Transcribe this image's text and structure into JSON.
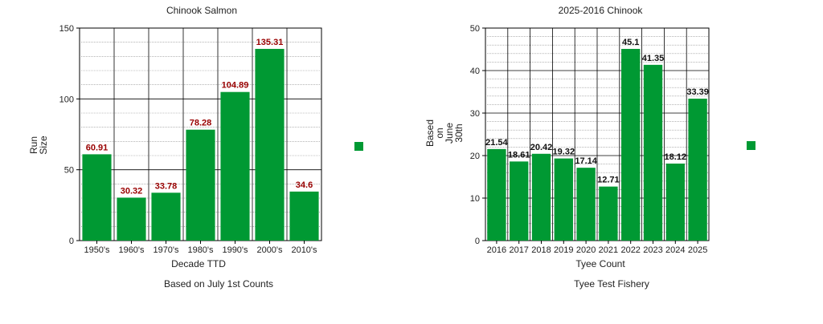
{
  "chart_data": [
    {
      "type": "bar",
      "title": "Chinook Salmon",
      "xlabel": "Decade TTD",
      "ylabel_lines": [
        "Run",
        "Size"
      ],
      "note": "Based on July 1st Counts",
      "categories": [
        "1950's",
        "1960's",
        "1970's",
        "1980's",
        "1990's",
        "2000's",
        "2010's"
      ],
      "values": [
        60.91,
        30.32,
        33.78,
        78.28,
        104.89,
        135.31,
        34.6
      ],
      "value_labels": [
        "60.91",
        "30.32",
        "33.78",
        "78.28",
        "104.89",
        "135.31",
        "34.6"
      ],
      "ylim": [
        0,
        150
      ],
      "yticks": [
        0,
        50,
        100,
        150
      ],
      "ytick_labels": [
        "0",
        "50",
        "100",
        "150"
      ],
      "grid": true,
      "legend": "right",
      "bar_color": "#009933",
      "label_color": "#990000"
    },
    {
      "type": "bar",
      "title": "2025-2016 Chinook",
      "xlabel": "Tyee Count",
      "ylabel_lines": [
        "Based",
        "on",
        "June",
        "30th"
      ],
      "note": "Tyee Test Fishery",
      "categories": [
        "2016",
        "2017",
        "2018",
        "2019",
        "2020",
        "2021",
        "2022",
        "2023",
        "2024",
        "2025"
      ],
      "values": [
        21.54,
        18.61,
        20.42,
        19.32,
        17.14,
        12.71,
        45.1,
        41.35,
        18.12,
        33.39
      ],
      "value_labels": [
        "21.54",
        "18.61",
        "20.42",
        "19.32",
        "17.14",
        "12.71",
        "45.1",
        "41.35",
        "18.12",
        "33.39"
      ],
      "ylim": [
        0,
        50
      ],
      "yticks": [
        0,
        10,
        20,
        30,
        40,
        50
      ],
      "ytick_labels": [
        "0",
        "10",
        "20",
        "30",
        "40",
        "50"
      ],
      "grid": true,
      "legend": "right",
      "bar_color": "#009933",
      "label_color": "#111111"
    }
  ]
}
